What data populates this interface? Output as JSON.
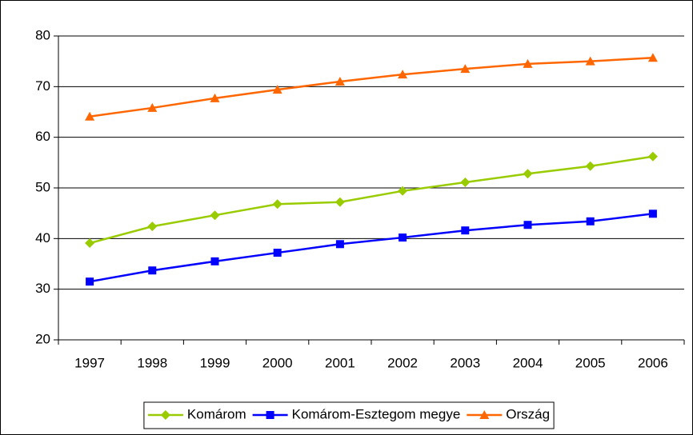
{
  "chart_data": {
    "type": "line",
    "categories": [
      "1997",
      "1998",
      "1999",
      "2000",
      "2001",
      "2002",
      "2003",
      "2004",
      "2005",
      "2006"
    ],
    "series": [
      {
        "name": "Komárom",
        "color": "#99cc00",
        "marker": "diamond",
        "values": [
          39.1,
          42.4,
          44.6,
          46.8,
          47.2,
          49.4,
          51.1,
          52.8,
          54.3,
          56.2
        ]
      },
      {
        "name": "Komárom-Esztegom megye",
        "color": "#0000ff",
        "marker": "square",
        "values": [
          31.5,
          33.7,
          35.5,
          37.2,
          38.9,
          40.2,
          41.6,
          42.7,
          43.4,
          44.9
        ]
      },
      {
        "name": "Ország",
        "color": "#ff6600",
        "marker": "triangle",
        "values": [
          64.1,
          65.8,
          67.7,
          69.4,
          71.0,
          72.4,
          73.5,
          74.5,
          75.0,
          75.7
        ]
      }
    ],
    "ylim": [
      20,
      80
    ],
    "yticks": [
      20,
      30,
      40,
      50,
      60,
      70,
      80
    ],
    "grid": true,
    "legend": "bottom"
  }
}
